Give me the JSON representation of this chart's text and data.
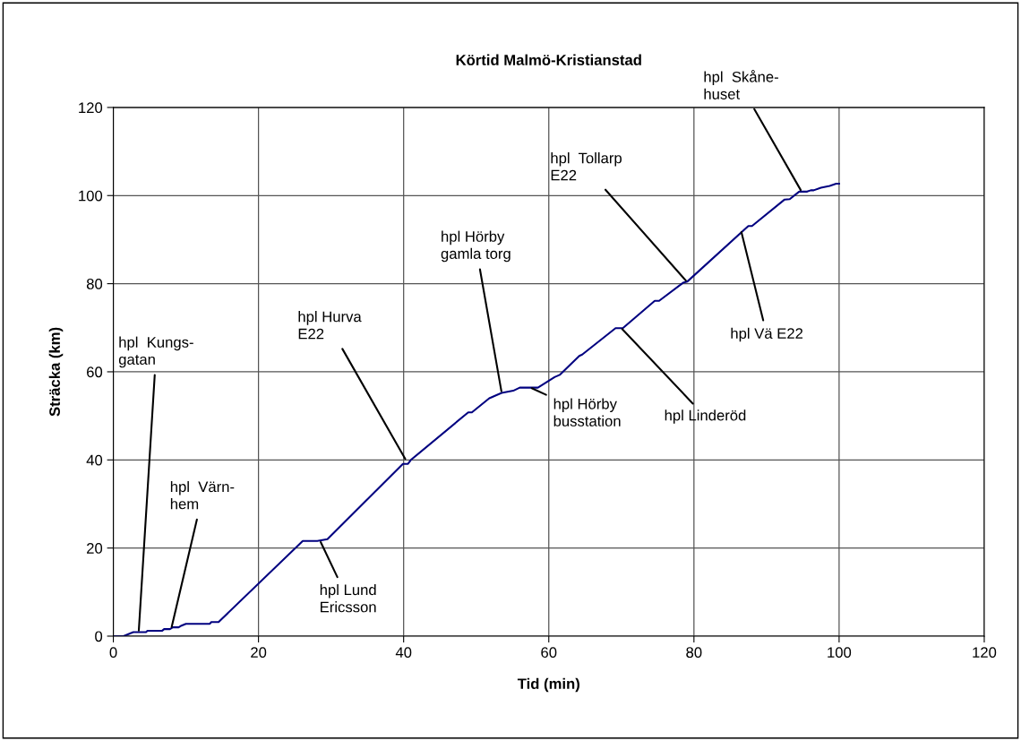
{
  "chart_data": {
    "type": "line",
    "title": "Körtid Malmö-Kristianstad",
    "xlabel": "Tid (min)",
    "ylabel": "Sträcka (km)",
    "x": [
      0,
      1.4,
      2.75,
      4.5,
      4.7,
      6.7,
      7.0,
      7.8,
      8.2,
      9.0,
      9.4,
      10.0,
      13.3,
      13.5,
      14.5,
      26.1,
      28.1,
      29.5,
      39.9,
      40.6,
      41.0,
      48.9,
      49.4,
      51.8,
      53.5,
      55.1,
      56.0,
      58.5,
      60.8,
      61.5,
      64.2,
      64.6,
      69.2,
      70.2,
      74.6,
      75.2,
      78.5,
      79.1,
      87.5,
      88.0,
      92.5,
      93.2,
      94.5,
      95.6,
      96.1,
      96.5,
      97.5,
      98.1,
      98.7,
      99.6,
      100.0
    ],
    "series": [
      {
        "color": "#000080",
        "values": [
          0,
          0,
          0.9,
          0.9,
          1.2,
          1.2,
          1.6,
          1.6,
          2.0,
          2.0,
          2.4,
          2.8,
          2.8,
          3.2,
          3.2,
          21.6,
          21.6,
          22.0,
          39.1,
          39.1,
          40.0,
          50.8,
          50.8,
          54.0,
          55.2,
          55.7,
          56.4,
          56.4,
          58.8,
          59.3,
          63.6,
          63.9,
          69.9,
          69.9,
          76.1,
          76.1,
          80.2,
          80.5,
          93.1,
          93.1,
          99.1,
          99.2,
          100.9,
          100.9,
          101.2,
          101.2,
          101.8,
          102.0,
          102.2,
          102.7,
          102.7
        ]
      }
    ],
    "xlim": [
      0,
      120
    ],
    "xticks": [
      0,
      20,
      40,
      60,
      80,
      100,
      120
    ],
    "ylim": [
      0,
      120
    ],
    "yticks": [
      0,
      20,
      40,
      60,
      80,
      100,
      120
    ],
    "grid": true,
    "marker": "none",
    "line_style": "solid",
    "annotations": [
      {
        "text": "hpl  Kungs-\ngatan",
        "x": 3.5,
        "y": 1.0
      },
      {
        "text": "hpl  Värn-\nhem",
        "x": 8.0,
        "y": 1.8
      },
      {
        "text": "hpl Lund\nEricsson",
        "x": 28.5,
        "y": 21.6
      },
      {
        "text": "hpl Hurva\nE22",
        "x": 40.3,
        "y": 40.0
      },
      {
        "text": "hpl Hörby\ngamla torg",
        "x": 53.5,
        "y": 55.3
      },
      {
        "text": "hpl Hörby\nbusstation",
        "x": 57.5,
        "y": 56.4
      },
      {
        "text": "hpl Linderöd",
        "x": 70.0,
        "y": 69.9
      },
      {
        "text": "hpl  Tollarp\nE22",
        "x": 79.0,
        "y": 80.5
      },
      {
        "text": "hpl Vä E22",
        "x": 86.5,
        "y": 92.0
      },
      {
        "text": "hpl  Skåne-\nhuset",
        "x": 94.8,
        "y": 101.0
      }
    ]
  }
}
